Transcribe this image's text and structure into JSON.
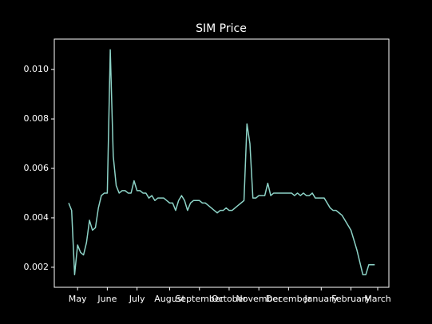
{
  "chart_data": {
    "type": "line",
    "title": "SIM Price",
    "categories": [
      null,
      null,
      null,
      "May",
      null,
      null,
      null,
      null,
      null,
      null,
      null,
      null,
      null,
      "June",
      null,
      null,
      null,
      null,
      null,
      null,
      null,
      null,
      null,
      "July",
      null,
      null,
      null,
      null,
      null,
      null,
      null,
      null,
      null,
      null,
      "August",
      null,
      null,
      null,
      null,
      null,
      null,
      null,
      null,
      null,
      "September",
      null,
      null,
      null,
      null,
      null,
      null,
      null,
      null,
      null,
      "October",
      null,
      null,
      null,
      null,
      null,
      null,
      null,
      null,
      null,
      "November",
      null,
      null,
      null,
      null,
      null,
      null,
      null,
      null,
      null,
      "December",
      null,
      null,
      null,
      null,
      null,
      null,
      null,
      null,
      null,
      null,
      "January",
      null,
      null,
      null,
      null,
      null,
      null,
      null,
      null,
      null,
      "February",
      null,
      null,
      null,
      null,
      null,
      null,
      null,
      null,
      "March"
    ],
    "values": [
      0.0046,
      0.0043,
      0.0017,
      0.0029,
      0.0026,
      0.0025,
      0.003,
      0.0039,
      0.0035,
      0.0036,
      0.0044,
      0.0049,
      0.005,
      0.005,
      0.0108,
      0.0065,
      0.0053,
      0.005,
      0.0051,
      0.0051,
      0.005,
      0.005,
      0.0055,
      0.0051,
      0.0051,
      0.005,
      0.005,
      0.0048,
      0.0049,
      0.0047,
      0.0048,
      0.0048,
      0.0048,
      0.0047,
      0.0046,
      0.0046,
      0.0043,
      0.0047,
      0.0049,
      0.0047,
      0.0043,
      0.0046,
      0.0047,
      0.0047,
      0.0047,
      0.0046,
      0.0046,
      0.0045,
      0.0044,
      0.0043,
      0.0042,
      0.0043,
      0.0043,
      0.0044,
      0.0043,
      0.0043,
      0.0044,
      0.0045,
      0.0046,
      0.0047,
      0.0078,
      0.007,
      0.0048,
      0.0048,
      0.0049,
      0.0049,
      0.0049,
      0.0054,
      0.0049,
      0.005,
      0.005,
      0.005,
      0.005,
      0.005,
      0.005,
      0.005,
      0.0049,
      0.005,
      0.0049,
      0.005,
      0.0049,
      0.0049,
      0.005,
      0.0048,
      0.0048,
      0.0048,
      0.0048,
      0.0046,
      0.0044,
      0.0043,
      0.0043,
      0.0042,
      0.0041,
      0.0039,
      0.0037,
      0.0035,
      0.0031,
      0.0027,
      0.0022,
      0.0017,
      0.0017,
      0.0021,
      0.0021,
      0.0021,
      null
    ],
    "color": "#8dd3c7",
    "ylim": [
      0.00119,
      0.01123
    ],
    "yticks": [
      0.002,
      0.004,
      0.006,
      0.008,
      {
        "value": 0.01,
        "label": "0.010"
      }
    ],
    "grid": false
  }
}
